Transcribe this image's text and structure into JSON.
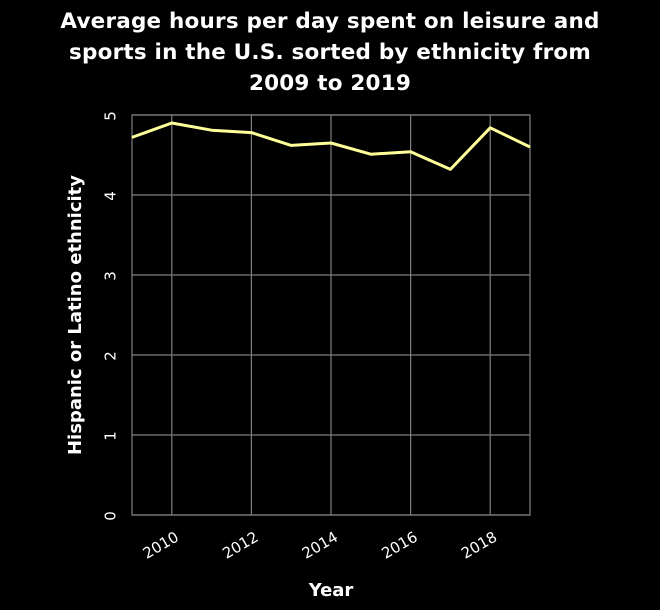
{
  "chart_data": {
    "type": "line",
    "title_lines": [
      "Average hours per day spent on leisure and",
      "sports in the U.S. sorted by ethnicity from",
      "2009 to 2019"
    ],
    "xlabel": "Year",
    "ylabel": "Hispanic or Latino ethnicity",
    "xlim": [
      2009,
      2019
    ],
    "ylim": [
      0,
      5
    ],
    "xticks": [
      2010,
      2012,
      2014,
      2016,
      2018
    ],
    "yticks": [
      0,
      1,
      2,
      3,
      4,
      5
    ],
    "grid": true,
    "series": [
      {
        "color": "#ffff99",
        "x": [
          2009,
          2010,
          2011,
          2012,
          2013,
          2014,
          2015,
          2016,
          2017,
          2018,
          2019
        ],
        "y": [
          4.72,
          4.9,
          4.81,
          4.78,
          4.62,
          4.65,
          4.51,
          4.54,
          4.32,
          4.84,
          4.6
        ]
      }
    ]
  },
  "colors": {
    "background": "#000000",
    "grid": "#7f7f7f",
    "text": "#ffffff",
    "line": "#ffff99"
  }
}
